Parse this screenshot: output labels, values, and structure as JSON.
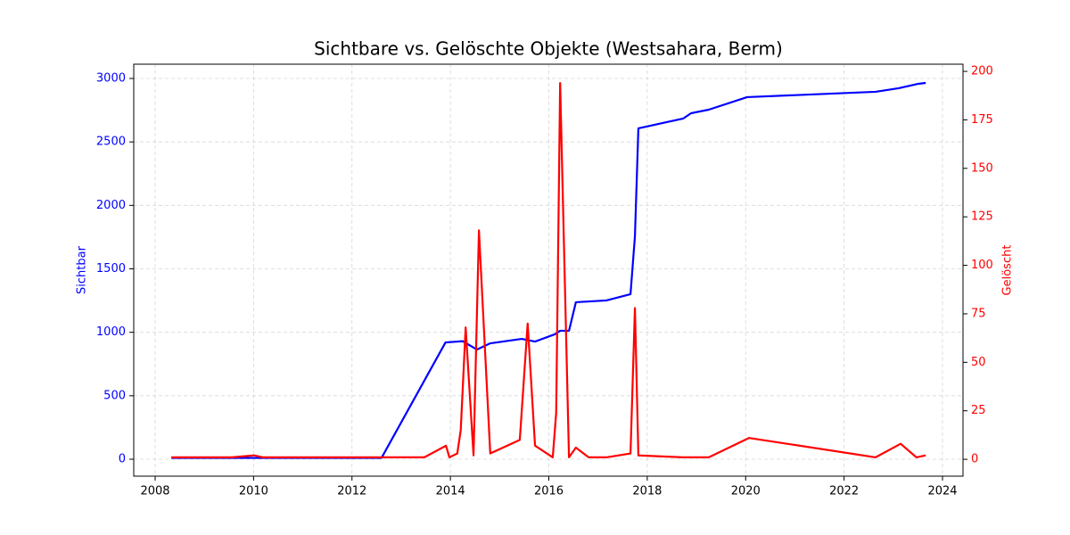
{
  "chart_data": {
    "type": "line",
    "title": "Sichtbare vs. Gelöschte Objekte (Westsahara, Berm)",
    "ylabel": "Sichtbar",
    "y2label": "Gelöscht",
    "xlim": [
      2007.565,
      2024.417
    ],
    "xticks": [
      2008,
      2010,
      2012,
      2014,
      2016,
      2018,
      2020,
      2022,
      2024
    ],
    "ylim": [
      -133.5,
      3112.4
    ],
    "yticks": [
      0,
      500,
      1000,
      1500,
      2000,
      2500,
      3000
    ],
    "y2lim": [
      -8.7,
      203.7
    ],
    "y2ticks": [
      0,
      25,
      50,
      75,
      100,
      125,
      150,
      175,
      200
    ],
    "grid": true,
    "series": [
      {
        "color": "#0000ff",
        "axis": "y",
        "x": [
          2008.33,
          2010.0,
          2012.6,
          2013.9,
          2014.25,
          2014.54,
          2014.81,
          2015.45,
          2015.72,
          2016.12,
          2016.23,
          2016.41,
          2016.55,
          2017.17,
          2017.66,
          2017.75,
          2017.82,
          2018.73,
          2018.89,
          2019.25,
          2020.03,
          2022.64,
          2023.11,
          2023.51,
          2023.66
        ],
        "values": [
          10,
          10,
          10,
          920,
          930,
          864,
          913,
          948,
          927,
          984,
          1012,
          1012,
          1237,
          1251,
          1300,
          1757,
          2607,
          2684,
          2726,
          2754,
          2853,
          2895,
          2923,
          2958,
          2965
        ]
      },
      {
        "color": "#ff0000",
        "axis": "y2",
        "x": [
          2008.33,
          2009.56,
          2010.01,
          2010.19,
          2013.47,
          2013.91,
          2013.98,
          2014.14,
          2014.21,
          2014.31,
          2014.47,
          2014.58,
          2014.81,
          2015.41,
          2015.57,
          2015.72,
          2016.08,
          2016.15,
          2016.23,
          2016.41,
          2016.55,
          2016.81,
          2017.17,
          2017.66,
          2017.75,
          2017.82,
          2018.73,
          2019.25,
          2020.07,
          2022.64,
          2023.15,
          2023.47,
          2023.66
        ],
        "values": [
          1,
          1,
          2,
          1,
          1,
          7,
          1,
          3,
          15,
          68,
          2,
          118,
          3,
          10,
          70,
          7,
          1,
          24,
          194,
          1,
          6,
          1,
          1,
          3,
          78,
          2,
          1,
          1,
          11,
          1,
          8,
          1,
          2
        ]
      }
    ]
  }
}
